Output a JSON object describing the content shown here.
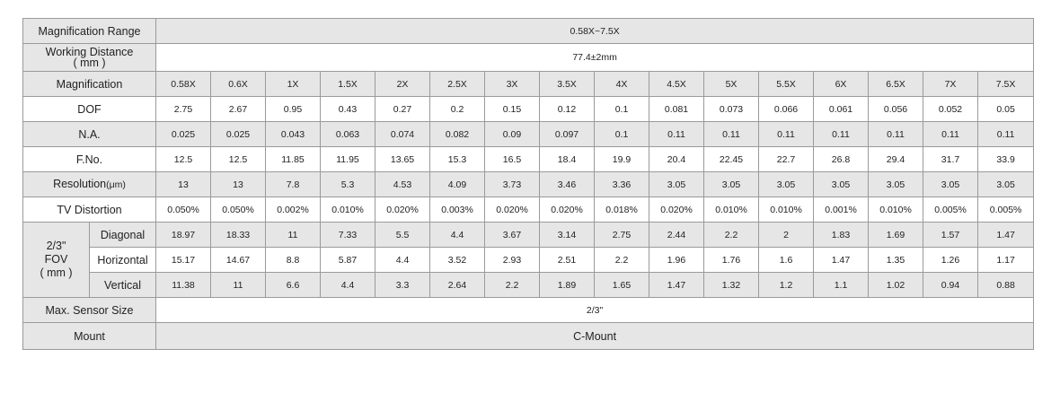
{
  "table": {
    "rows_top": [
      {
        "label": "Magnification Range",
        "value": "0.58X~7.5X"
      },
      {
        "label": "Working Distance\n( mm )",
        "value": "77.4±2mm"
      }
    ],
    "magnification": {
      "label": "Magnification",
      "values": [
        "0.58X",
        "0.6X",
        "1X",
        "1.5X",
        "2X",
        "2.5X",
        "3X",
        "3.5X",
        "4X",
        "4.5X",
        "5X",
        "5.5X",
        "6X",
        "6.5X",
        "7X",
        "7.5X"
      ]
    },
    "dof": {
      "label": "DOF",
      "values": [
        "2.75",
        "2.67",
        "0.95",
        "0.43",
        "0.27",
        "0.2",
        "0.15",
        "0.12",
        "0.1",
        "0.081",
        "0.073",
        "0.066",
        "0.061",
        "0.056",
        "0.052",
        "0.05"
      ]
    },
    "na": {
      "label": "N.A.",
      "values": [
        "0.025",
        "0.025",
        "0.043",
        "0.063",
        "0.074",
        "0.082",
        "0.09",
        "0.097",
        "0.1",
        "0.11",
        "0.11",
        "0.11",
        "0.11",
        "0.11",
        "0.11",
        "0.11"
      ]
    },
    "fno": {
      "label": "F.No.",
      "values": [
        "12.5",
        "12.5",
        "11.85",
        "11.95",
        "13.65",
        "15.3",
        "16.5",
        "18.4",
        "19.9",
        "20.4",
        "22.45",
        "22.7",
        "26.8",
        "29.4",
        "31.7",
        "33.9"
      ]
    },
    "resolution": {
      "label": "Resolution",
      "unit": "(μm)",
      "values": [
        "13",
        "13",
        "7.8",
        "5.3",
        "4.53",
        "4.09",
        "3.73",
        "3.46",
        "3.36",
        "3.05",
        "3.05",
        "3.05",
        "3.05",
        "3.05",
        "3.05",
        "3.05"
      ]
    },
    "tv_distortion": {
      "label": "TV Distortion",
      "values": [
        "0.050%",
        "0.050%",
        "0.002%",
        "0.010%",
        "0.020%",
        "0.003%",
        "0.020%",
        "0.020%",
        "0.018%",
        "0.020%",
        "0.010%",
        "0.010%",
        "0.001%",
        "0.010%",
        "0.005%",
        "0.005%"
      ]
    },
    "fov": {
      "group_label_line1": "2/3\"",
      "group_label_line2": "FOV",
      "group_label_line3": "( mm )",
      "diagonal": {
        "label": "Diagonal",
        "values": [
          "18.97",
          "18.33",
          "11",
          "7.33",
          "5.5",
          "4.4",
          "3.67",
          "3.14",
          "2.75",
          "2.44",
          "2.2",
          "2",
          "1.83",
          "1.69",
          "1.57",
          "1.47"
        ]
      },
      "horizontal": {
        "label": "Horizontal",
        "values": [
          "15.17",
          "14.67",
          "8.8",
          "5.87",
          "4.4",
          "3.52",
          "2.93",
          "2.51",
          "2.2",
          "1.96",
          "1.76",
          "1.6",
          "1.47",
          "1.35",
          "1.26",
          "1.17"
        ]
      },
      "vertical": {
        "label": "Vertical",
        "values": [
          "11.38",
          "11",
          "6.6",
          "4.4",
          "3.3",
          "2.64",
          "2.2",
          "1.89",
          "1.65",
          "1.47",
          "1.32",
          "1.2",
          "1.1",
          "1.02",
          "0.94",
          "0.88"
        ]
      }
    },
    "max_sensor": {
      "label": "Max. Sensor Size",
      "value": "2/3\""
    },
    "mount": {
      "label": "Mount",
      "value": "C-Mount"
    }
  }
}
